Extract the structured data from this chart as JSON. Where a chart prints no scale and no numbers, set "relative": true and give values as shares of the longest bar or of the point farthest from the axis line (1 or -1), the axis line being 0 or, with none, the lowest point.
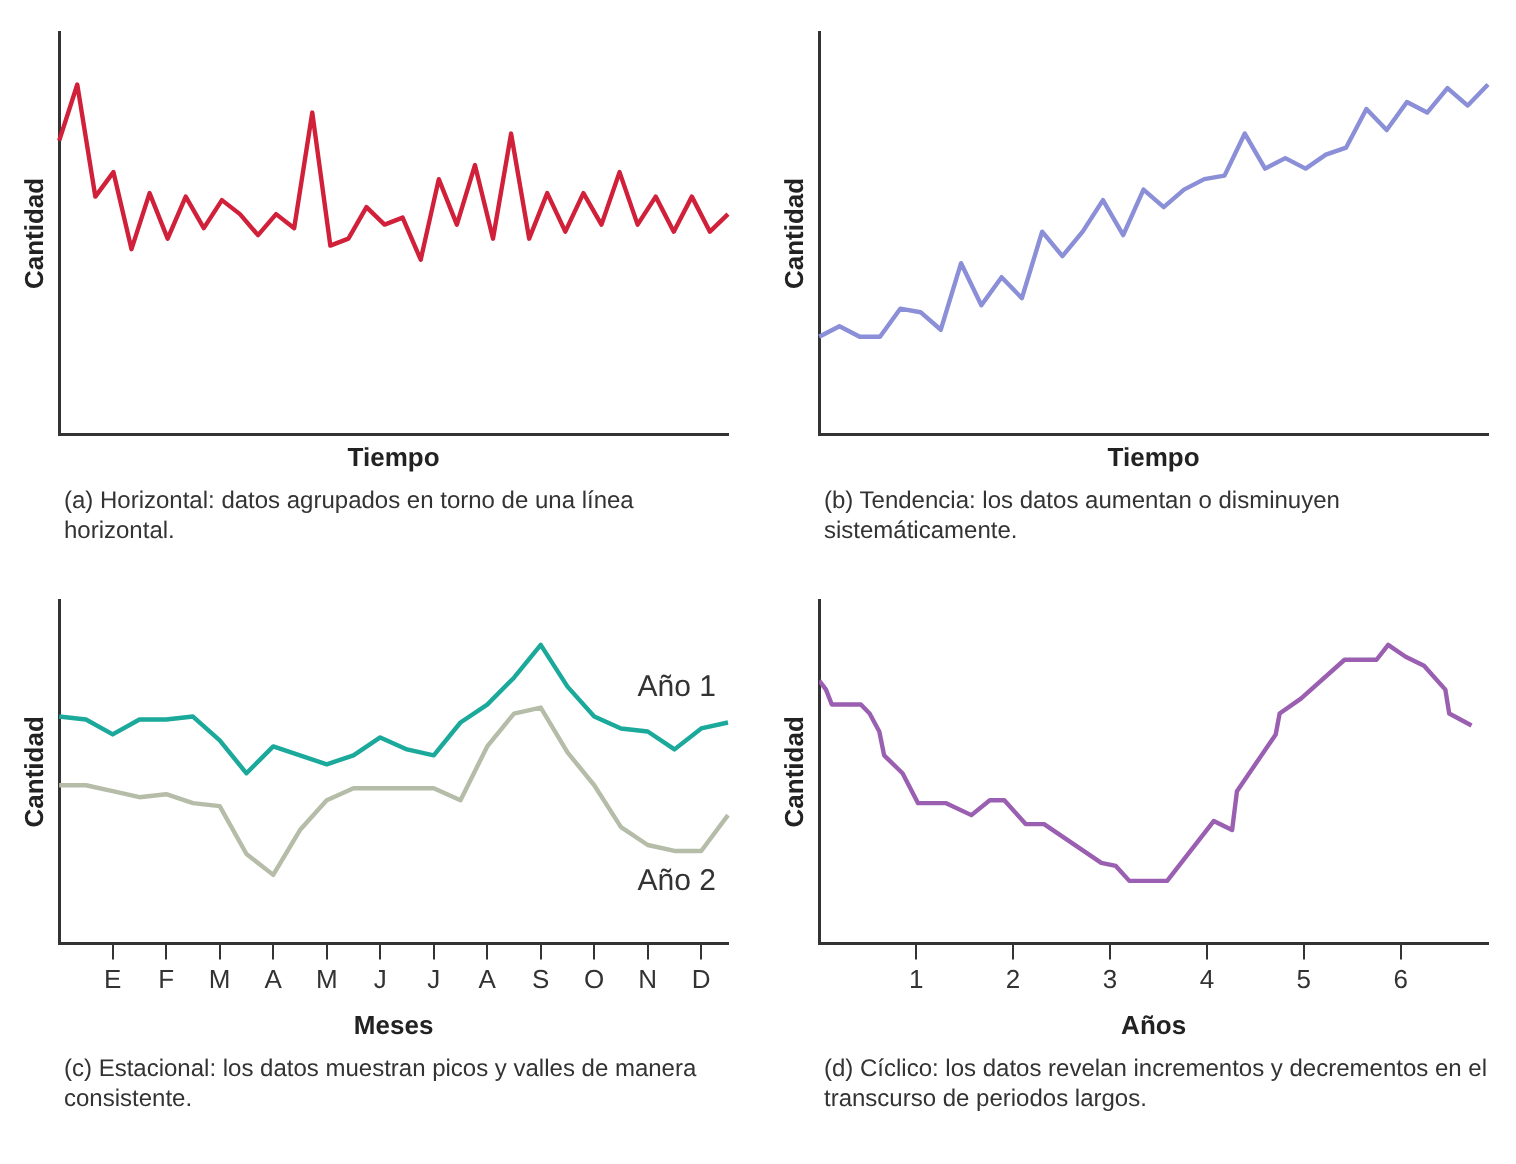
{
  "chart_data": [
    {
      "type": "line",
      "relative": true,
      "xlabel": "Tiempo",
      "ylabel": "Cantidad",
      "tick_labels": false,
      "grid": false,
      "legend": false,
      "marker": "none",
      "line_style": "solid",
      "annotations": [
        "(a) Horizontal: datos agrupados en torno de una línea horizontal."
      ],
      "categories": [
        null,
        null,
        null,
        null,
        null,
        null,
        null,
        null,
        null,
        null,
        null,
        null,
        null,
        null,
        null,
        null,
        null,
        null,
        null,
        null,
        null,
        null,
        null,
        null,
        null,
        null,
        null,
        null,
        null,
        null,
        null,
        null,
        null,
        null,
        null,
        null,
        null,
        null
      ],
      "series": [
        {
          "color": "#d0203a",
          "values": [
            0.84,
            1,
            0.68,
            0.75,
            0.53,
            0.69,
            0.56,
            0.68,
            0.59,
            0.67,
            0.63,
            0.57,
            0.63,
            0.59,
            0.92,
            0.54,
            0.56,
            0.65,
            0.6,
            0.62,
            0.5,
            0.73,
            0.6,
            0.77,
            0.56,
            0.86,
            0.56,
            0.69,
            0.58,
            0.69,
            0.6,
            0.75,
            0.6,
            0.68,
            0.58,
            0.68,
            0.58,
            0.63
          ]
        }
      ]
    },
    {
      "type": "line",
      "relative": true,
      "xlabel": "Tiempo",
      "ylabel": "Cantidad",
      "tick_labels": false,
      "grid": false,
      "legend": false,
      "marker": "none",
      "line_style": "solid",
      "annotations": [
        "(b) Tendencia: los datos aumentan o disminuyen sistemáticamente."
      ],
      "categories": [
        null,
        null,
        null,
        null,
        null,
        null,
        null,
        null,
        null,
        null,
        null,
        null,
        null,
        null,
        null,
        null,
        null,
        null,
        null,
        null,
        null,
        null,
        null,
        null,
        null,
        null,
        null,
        null,
        null,
        null,
        null,
        null,
        null,
        null
      ],
      "series": [
        {
          "color": "#8a8fd8",
          "values": [
            0.28,
            0.31,
            0.28,
            0.28,
            0.36,
            0.35,
            0.3,
            0.49,
            0.37,
            0.45,
            0.39,
            0.58,
            0.51,
            0.58,
            0.67,
            0.57,
            0.7,
            0.65,
            0.7,
            0.73,
            0.74,
            0.86,
            0.76,
            0.79,
            0.76,
            0.8,
            0.82,
            0.93,
            0.87,
            0.95,
            0.92,
            0.99,
            0.94,
            1
          ]
        }
      ]
    },
    {
      "type": "line",
      "relative": true,
      "xlabel": "Meses",
      "ylabel": "Cantidad",
      "tick_labels": "x",
      "grid": false,
      "legend": false,
      "marker": "none",
      "line_style": "solid",
      "annotations": [
        "(c) Estacional: los datos muestran picos y valles de manera consistente."
      ],
      "categories": [
        null,
        null,
        "E",
        null,
        "F",
        null,
        "M",
        null,
        "A",
        null,
        "M",
        null,
        "J",
        null,
        "J",
        null,
        "A",
        null,
        "S",
        null,
        "O",
        null,
        "N",
        null,
        "D",
        null
      ],
      "series": [
        {
          "name": "Año 1",
          "color": "#1aa99a",
          "values": [
            0.76,
            0.75,
            0.7,
            0.75,
            0.75,
            0.76,
            0.68,
            0.57,
            0.66,
            0.63,
            0.6,
            0.63,
            0.69,
            0.65,
            0.63,
            0.74,
            0.8,
            0.89,
            1,
            0.86,
            0.76,
            0.72,
            0.71,
            0.65,
            0.72,
            0.74
          ]
        },
        {
          "name": "Año 2",
          "color": "#b5bca8",
          "values": [
            0.53,
            0.53,
            0.51,
            0.49,
            0.5,
            0.47,
            0.46,
            0.3,
            0.23,
            0.38,
            0.48,
            0.52,
            0.52,
            0.52,
            0.52,
            0.48,
            0.66,
            0.77,
            0.79,
            0.64,
            0.53,
            0.39,
            0.33,
            0.31,
            0.31,
            0.43
          ]
        }
      ]
    },
    {
      "type": "line",
      "relative": true,
      "xlabel": "Años",
      "ylabel": "Cantidad",
      "tick_labels": "x",
      "grid": false,
      "legend": false,
      "marker": "none",
      "line_style": "solid",
      "annotations": [
        "(d) Cíclico: los datos revelan incrementos y decrementos en el transcurso de periodos largos."
      ],
      "xlim": [
        0,
        6.9
      ],
      "xticks": [
        1,
        2,
        3,
        4,
        5,
        6
      ],
      "series": [
        {
          "color": "#9a5fb0",
          "x": [
            0,
            0.07,
            0.13,
            0.43,
            0.52,
            0.62,
            0.67,
            0.86,
            1.02,
            1.31,
            1.57,
            1.76,
            1.91,
            2.13,
            2.32,
            2.91,
            3.06,
            3.2,
            3.59,
            4.07,
            4.26,
            4.31,
            4.71,
            4.75,
            4.97,
            5.42,
            5.75,
            5.87,
            6.05,
            6.24,
            6.46,
            6.5,
            6.73
          ],
          "values": [
            0.88,
            0.85,
            0.8,
            0.8,
            0.77,
            0.71,
            0.63,
            0.57,
            0.47,
            0.47,
            0.43,
            0.48,
            0.48,
            0.4,
            0.4,
            0.27,
            0.26,
            0.21,
            0.21,
            0.41,
            0.38,
            0.51,
            0.7,
            0.77,
            0.82,
            0.95,
            0.95,
            1,
            0.96,
            0.93,
            0.85,
            0.77,
            0.73
          ]
        }
      ]
    }
  ]
}
